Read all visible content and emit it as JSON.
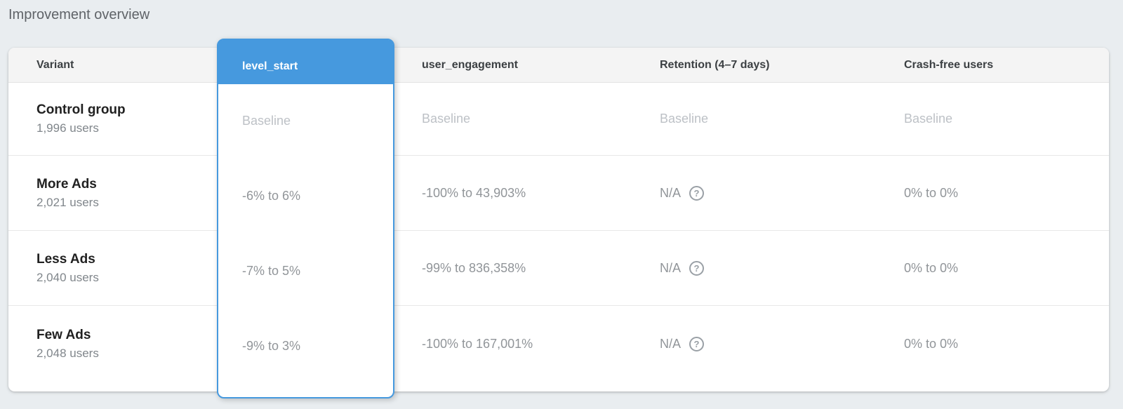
{
  "page": {
    "title": "Improvement overview"
  },
  "colors": {
    "accent_blue": "#4699de",
    "page_background": "#e9edf0",
    "header_background": "#f4f4f4",
    "baseline_text": "#bdc1c6",
    "value_text": "#919599"
  },
  "icons": {
    "help": "?"
  },
  "table": {
    "columns": [
      {
        "label": "Variant",
        "selected": false
      },
      {
        "label": "level_start",
        "selected": true
      },
      {
        "label": "user_engagement",
        "selected": false
      },
      {
        "label": "Retention (4–7 days)",
        "selected": false
      },
      {
        "label": "Crash-free users",
        "selected": false
      }
    ],
    "rows": [
      {
        "variant": "Control group",
        "users": "1,996 users",
        "level_start": "Baseline",
        "user_engagement": "Baseline",
        "retention": "Baseline",
        "crash_free": "Baseline"
      },
      {
        "variant": "More Ads",
        "users": "2,021 users",
        "level_start": "-6% to 6%",
        "user_engagement": "-100% to 43,903%",
        "retention": "N/A",
        "crash_free": "0% to 0%"
      },
      {
        "variant": "Less Ads",
        "users": "2,040 users",
        "level_start": "-7% to 5%",
        "user_engagement": "-99% to 836,358%",
        "retention": "N/A",
        "crash_free": "0% to 0%"
      },
      {
        "variant": "Few Ads",
        "users": "2,048 users",
        "level_start": "-9% to 3%",
        "user_engagement": "-100% to 167,001%",
        "retention": "N/A",
        "crash_free": "0% to 0%"
      }
    ]
  }
}
